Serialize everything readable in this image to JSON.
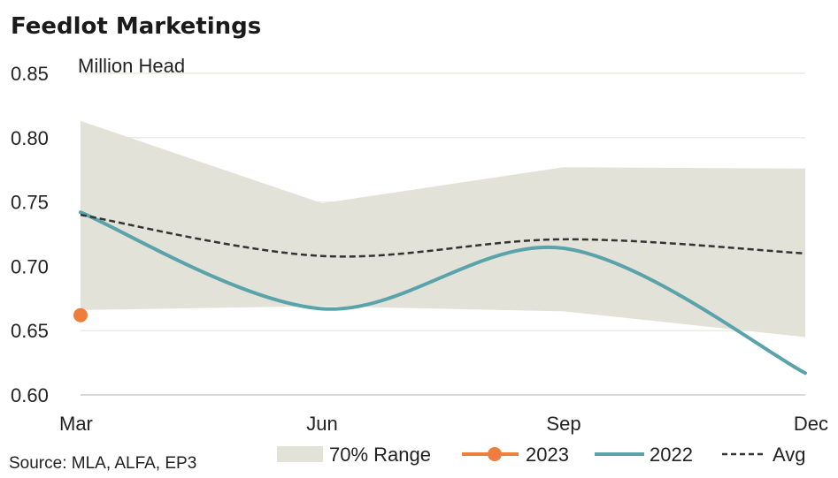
{
  "chart_data": {
    "type": "line",
    "title": "Feedlot Marketings",
    "ylabel": "Million Head",
    "xlabel": "",
    "categories": [
      "Mar",
      "Jun",
      "Sep",
      "Dec"
    ],
    "ylim": [
      0.6,
      0.85
    ],
    "yticks": [
      "0.60",
      "0.65",
      "0.70",
      "0.75",
      "0.80",
      "0.85"
    ],
    "grid": true,
    "legend_position": "bottom",
    "range": {
      "name": "70% Range",
      "upper": [
        0.813,
        0.749,
        0.777,
        0.776
      ],
      "lower": [
        0.666,
        0.669,
        0.665,
        0.645
      ],
      "color": "#e3e2d8"
    },
    "series": [
      {
        "name": "2023",
        "values": [
          0.662,
          null,
          null,
          null
        ],
        "color": "#ee7f3b"
      },
      {
        "name": "2022",
        "values": [
          0.742,
          0.667,
          0.714,
          0.617
        ],
        "color": "#5aa3ab"
      },
      {
        "name": "Avg",
        "values": [
          0.74,
          0.708,
          0.721,
          0.71
        ],
        "color": "#333333"
      }
    ],
    "source": "Source: MLA, ALFA, EP3"
  }
}
